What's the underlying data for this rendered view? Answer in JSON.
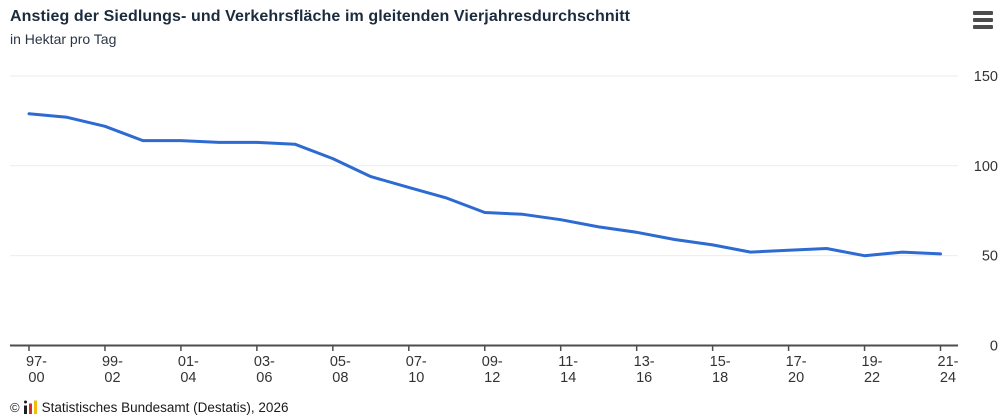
{
  "header": {
    "title": "Anstieg der Siedlungs- und Verkehrsfläche im gleitenden Vierjahresdurchschnitt",
    "subtitle": "in Hektar pro Tag"
  },
  "menu": {
    "icon": "hamburger-menu-icon"
  },
  "chart_data": {
    "type": "line",
    "title": "Anstieg der Siedlungs- und Verkehrsfläche im gleitenden Vierjahresdurchschnitt",
    "ylabel": "in Hektar pro Tag",
    "x_tick_labels": [
      "97-00",
      "99-02",
      "01-04",
      "03-06",
      "05-08",
      "07-10",
      "09-12",
      "11-14",
      "13-16",
      "15-18",
      "17-20",
      "19-22",
      "21-24"
    ],
    "y_ticks": [
      0,
      50,
      100,
      150
    ],
    "ylim": [
      0,
      160
    ],
    "grid": "horizontal",
    "y_axis_position": "right",
    "legend": "none",
    "series": [
      {
        "name": "Anstieg der Siedlungs- und Verkehrsfläche (ha pro Tag)",
        "periods": [
          "1997-2000",
          "1998-2001",
          "1999-2002",
          "2000-2003",
          "2001-2004",
          "2002-2005",
          "2003-2006",
          "2004-2007",
          "2005-2008",
          "2006-2009",
          "2007-2010",
          "2008-2011",
          "2009-2012",
          "2010-2013",
          "2011-2014",
          "2012-2015",
          "2013-2016",
          "2014-2017",
          "2015-2018",
          "2016-2019",
          "2017-2020",
          "2018-2021",
          "2019-2022",
          "2020-2023",
          "2021-2024"
        ],
        "values": [
          129,
          127,
          122,
          114,
          114,
          113,
          113,
          112,
          104,
          94,
          88,
          82,
          74,
          73,
          70,
          66,
          63,
          59,
          56,
          52,
          53,
          54,
          50,
          52,
          51
        ]
      }
    ]
  },
  "footer": {
    "copyright_symbol": "©",
    "logo": "destatis-mini-barchart-logo",
    "text": "Statistisches Bundesamt (Destatis), 2026"
  },
  "colors": {
    "line": "#2d6ad2",
    "grid": "#ebebeb",
    "axis": "#4d4d4d",
    "tick_text": "#333333",
    "logo_black": "#1d1d1b",
    "logo_red": "#cc2f2f",
    "logo_gold": "#f2bb0d"
  }
}
